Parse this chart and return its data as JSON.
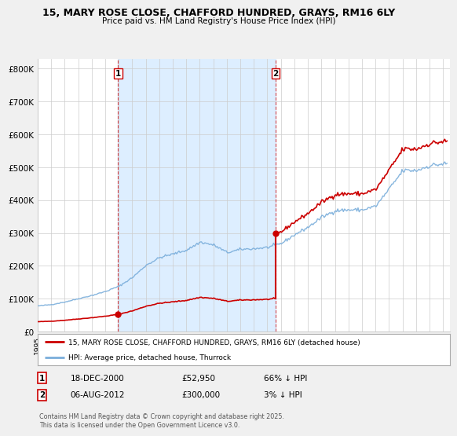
{
  "title": "15, MARY ROSE CLOSE, CHAFFORD HUNDRED, GRAYS, RM16 6LY",
  "subtitle": "Price paid vs. HM Land Registry's House Price Index (HPI)",
  "ylabel_ticks": [
    "£0",
    "£100K",
    "£200K",
    "£300K",
    "£400K",
    "£500K",
    "£600K",
    "£700K",
    "£800K"
  ],
  "ytick_values": [
    0,
    100000,
    200000,
    300000,
    400000,
    500000,
    600000,
    700000,
    800000
  ],
  "ylim": [
    0,
    830000
  ],
  "xlim_start": 1995.0,
  "xlim_end": 2025.5,
  "sale1_year": 2000.96,
  "sale1_price": 52950,
  "sale2_year": 2012.6,
  "sale2_price": 300000,
  "legend_line1": "15, MARY ROSE CLOSE, CHAFFORD HUNDRED, GRAYS, RM16 6LY (detached house)",
  "legend_line2": "HPI: Average price, detached house, Thurrock",
  "annotation1_date": "18-DEC-2000",
  "annotation1_price": "£52,950",
  "annotation1_hpi": "66% ↓ HPI",
  "annotation2_date": "06-AUG-2012",
  "annotation2_price": "£300,000",
  "annotation2_hpi": "3% ↓ HPI",
  "footer": "Contains HM Land Registry data © Crown copyright and database right 2025.\nThis data is licensed under the Open Government Licence v3.0.",
  "red_color": "#cc0000",
  "blue_color": "#7aaedb",
  "shade_color": "#ddeeff",
  "bg_color": "#f0f0f0",
  "plot_bg_color": "#ffffff",
  "grid_color": "#cccccc"
}
